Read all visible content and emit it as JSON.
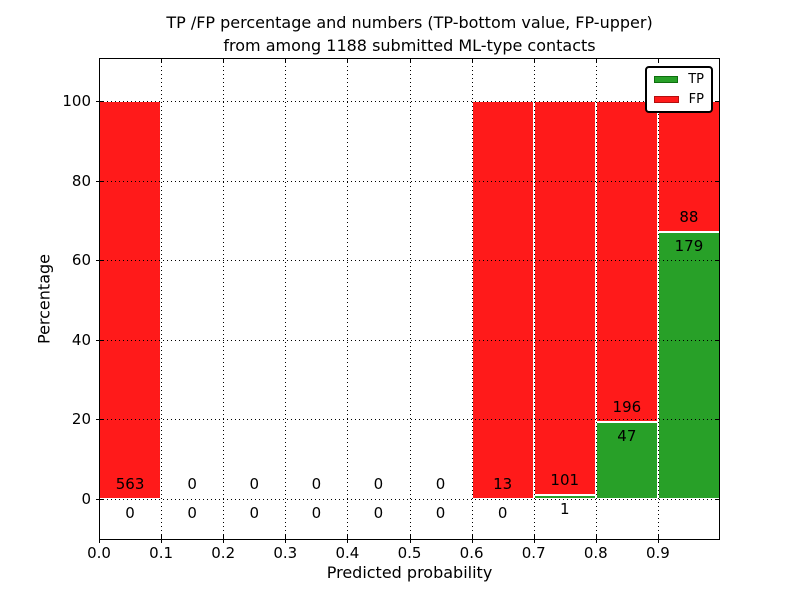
{
  "title": {
    "line1": "TP /FP percentage and numbers (TP-bottom value, FP-upper)",
    "line2": "from among 1188 submitted ML-type contacts"
  },
  "chart_data": {
    "type": "bar",
    "subtype": "stacked-percentage-histogram",
    "title": "TP /FP percentage and numbers (TP-bottom value, FP-upper) from among 1188 submitted ML-type contacts",
    "xlabel": "Predicted probability",
    "ylabel": "Percentage",
    "x_range": [
      0.0,
      1.0
    ],
    "bin_width": 0.1,
    "total_contacts": 1188,
    "grid": "dotted",
    "legend_position": "upper right",
    "y_ticks": [
      0,
      20,
      40,
      60,
      80,
      100
    ],
    "x_ticks": [
      {
        "value": 0.0,
        "label": "0.0"
      },
      {
        "value": 0.1,
        "label": "0.1"
      },
      {
        "value": 0.2,
        "label": "0.2"
      },
      {
        "value": 0.3,
        "label": "0.3"
      },
      {
        "value": 0.4,
        "label": "0.4"
      },
      {
        "value": 0.5,
        "label": "0.5"
      },
      {
        "value": 0.6,
        "label": "0.6"
      },
      {
        "value": 0.7,
        "label": "0.7"
      },
      {
        "value": 0.8,
        "label": "0.8"
      },
      {
        "value": 0.9,
        "label": "0.9"
      }
    ],
    "series": [
      {
        "name": "TP",
        "color": "#28a028",
        "edge_color": "#0e6e0e"
      },
      {
        "name": "FP",
        "color": "#ff1a1a",
        "edge_color": "#b30f0f"
      }
    ],
    "bins": [
      {
        "range": [
          0.0,
          0.1
        ],
        "tp": 0,
        "fp": 563
      },
      {
        "range": [
          0.1,
          0.2
        ],
        "tp": 0,
        "fp": 0
      },
      {
        "range": [
          0.2,
          0.3
        ],
        "tp": 0,
        "fp": 0
      },
      {
        "range": [
          0.3,
          0.4
        ],
        "tp": 0,
        "fp": 0
      },
      {
        "range": [
          0.4,
          0.5
        ],
        "tp": 0,
        "fp": 0
      },
      {
        "range": [
          0.5,
          0.6
        ],
        "tp": 0,
        "fp": 0
      },
      {
        "range": [
          0.6,
          0.7
        ],
        "tp": 0,
        "fp": 13
      },
      {
        "range": [
          0.7,
          0.8
        ],
        "tp": 1,
        "fp": 101
      },
      {
        "range": [
          0.8,
          0.9
        ],
        "tp": 47,
        "fp": 196
      },
      {
        "range": [
          0.9,
          1.0
        ],
        "tp": 179,
        "fp": 88
      }
    ]
  },
  "legend": {
    "items": [
      {
        "label": "TP",
        "color": "#28a028"
      },
      {
        "label": "FP",
        "color": "#ff1a1a"
      }
    ]
  }
}
